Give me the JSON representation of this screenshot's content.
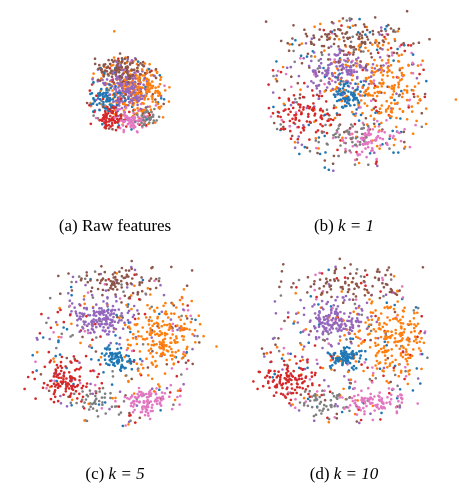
{
  "figure": {
    "panels": [
      {
        "id": "a",
        "caption_prefix": "(a)",
        "caption_text": "Raw features",
        "caption_math": ""
      },
      {
        "id": "b",
        "caption_prefix": "(b)",
        "caption_text": "",
        "caption_math": "k = 1"
      },
      {
        "id": "c",
        "caption_prefix": "(c)",
        "caption_text": "",
        "caption_math": "k = 5"
      },
      {
        "id": "d",
        "caption_prefix": "(d)",
        "caption_text": "",
        "caption_math": "k = 10"
      }
    ],
    "cluster_colors": {
      "orange": "#ff7f0e",
      "purple": "#9467bd",
      "blue": "#1f77b4",
      "brown": "#8c564b",
      "red": "#d62728",
      "pink": "#e377c2",
      "gray": "#7f7f7f"
    }
  }
}
